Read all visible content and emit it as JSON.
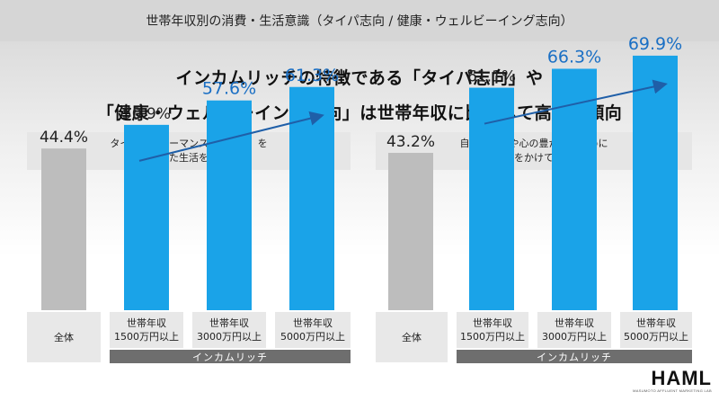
{
  "header": {
    "title": "世帯年収別の消費・生活意識（タイパ志向 / 健康・ウェルビーイング志向）"
  },
  "headline": {
    "line1": "インカムリッチの特徴である「タイパ志向」や",
    "line2": "「健康・ウェルビーイング志向」は世帯年収に比例して高まる傾向"
  },
  "logo": {
    "text": "HAML",
    "sub": "MASUMOTO AFFLUENT MARKETING LAB"
  },
  "colors": {
    "gray_bar": "#bdbdbd",
    "blue_bar": "#1aa3e8",
    "blue_text": "#1a6fc4",
    "arrow": "#1f5fa8",
    "group_bg": "#6e6e6e"
  },
  "chart_data": [
    {
      "type": "bar",
      "title_lines": [
        "タイムパフォーマンス（タイパ）を",
        "重視した生活をしたい"
      ],
      "categories": [
        [
          "全体"
        ],
        [
          "世帯年収",
          "1500万円以上"
        ],
        [
          "世帯年収",
          "3000万円以上"
        ],
        [
          "世帯年収",
          "5000万円以上"
        ]
      ],
      "values": [
        44.4,
        50.9,
        57.6,
        61.3
      ],
      "value_labels": [
        "44.4%",
        "50.9%",
        "57.6%",
        "61.3%"
      ],
      "highlight": [
        false,
        true,
        true,
        true
      ],
      "group_label": "インカムリッチ",
      "ylim": [
        0,
        75
      ]
    },
    {
      "type": "bar",
      "title_lines": [
        "自身の健康や心の豊かさのために",
        "お金をかけている"
      ],
      "categories": [
        [
          "全体"
        ],
        [
          "世帯年収",
          "1500万円以上"
        ],
        [
          "世帯年収",
          "3000万円以上"
        ],
        [
          "世帯年収",
          "5000万円以上"
        ]
      ],
      "values": [
        43.2,
        61.1,
        66.3,
        69.9
      ],
      "value_labels": [
        "43.2%",
        "61.1%",
        "66.3%",
        "69.9%"
      ],
      "highlight": [
        false,
        true,
        true,
        true
      ],
      "group_label": "インカムリッチ",
      "ylim": [
        0,
        75
      ]
    }
  ]
}
